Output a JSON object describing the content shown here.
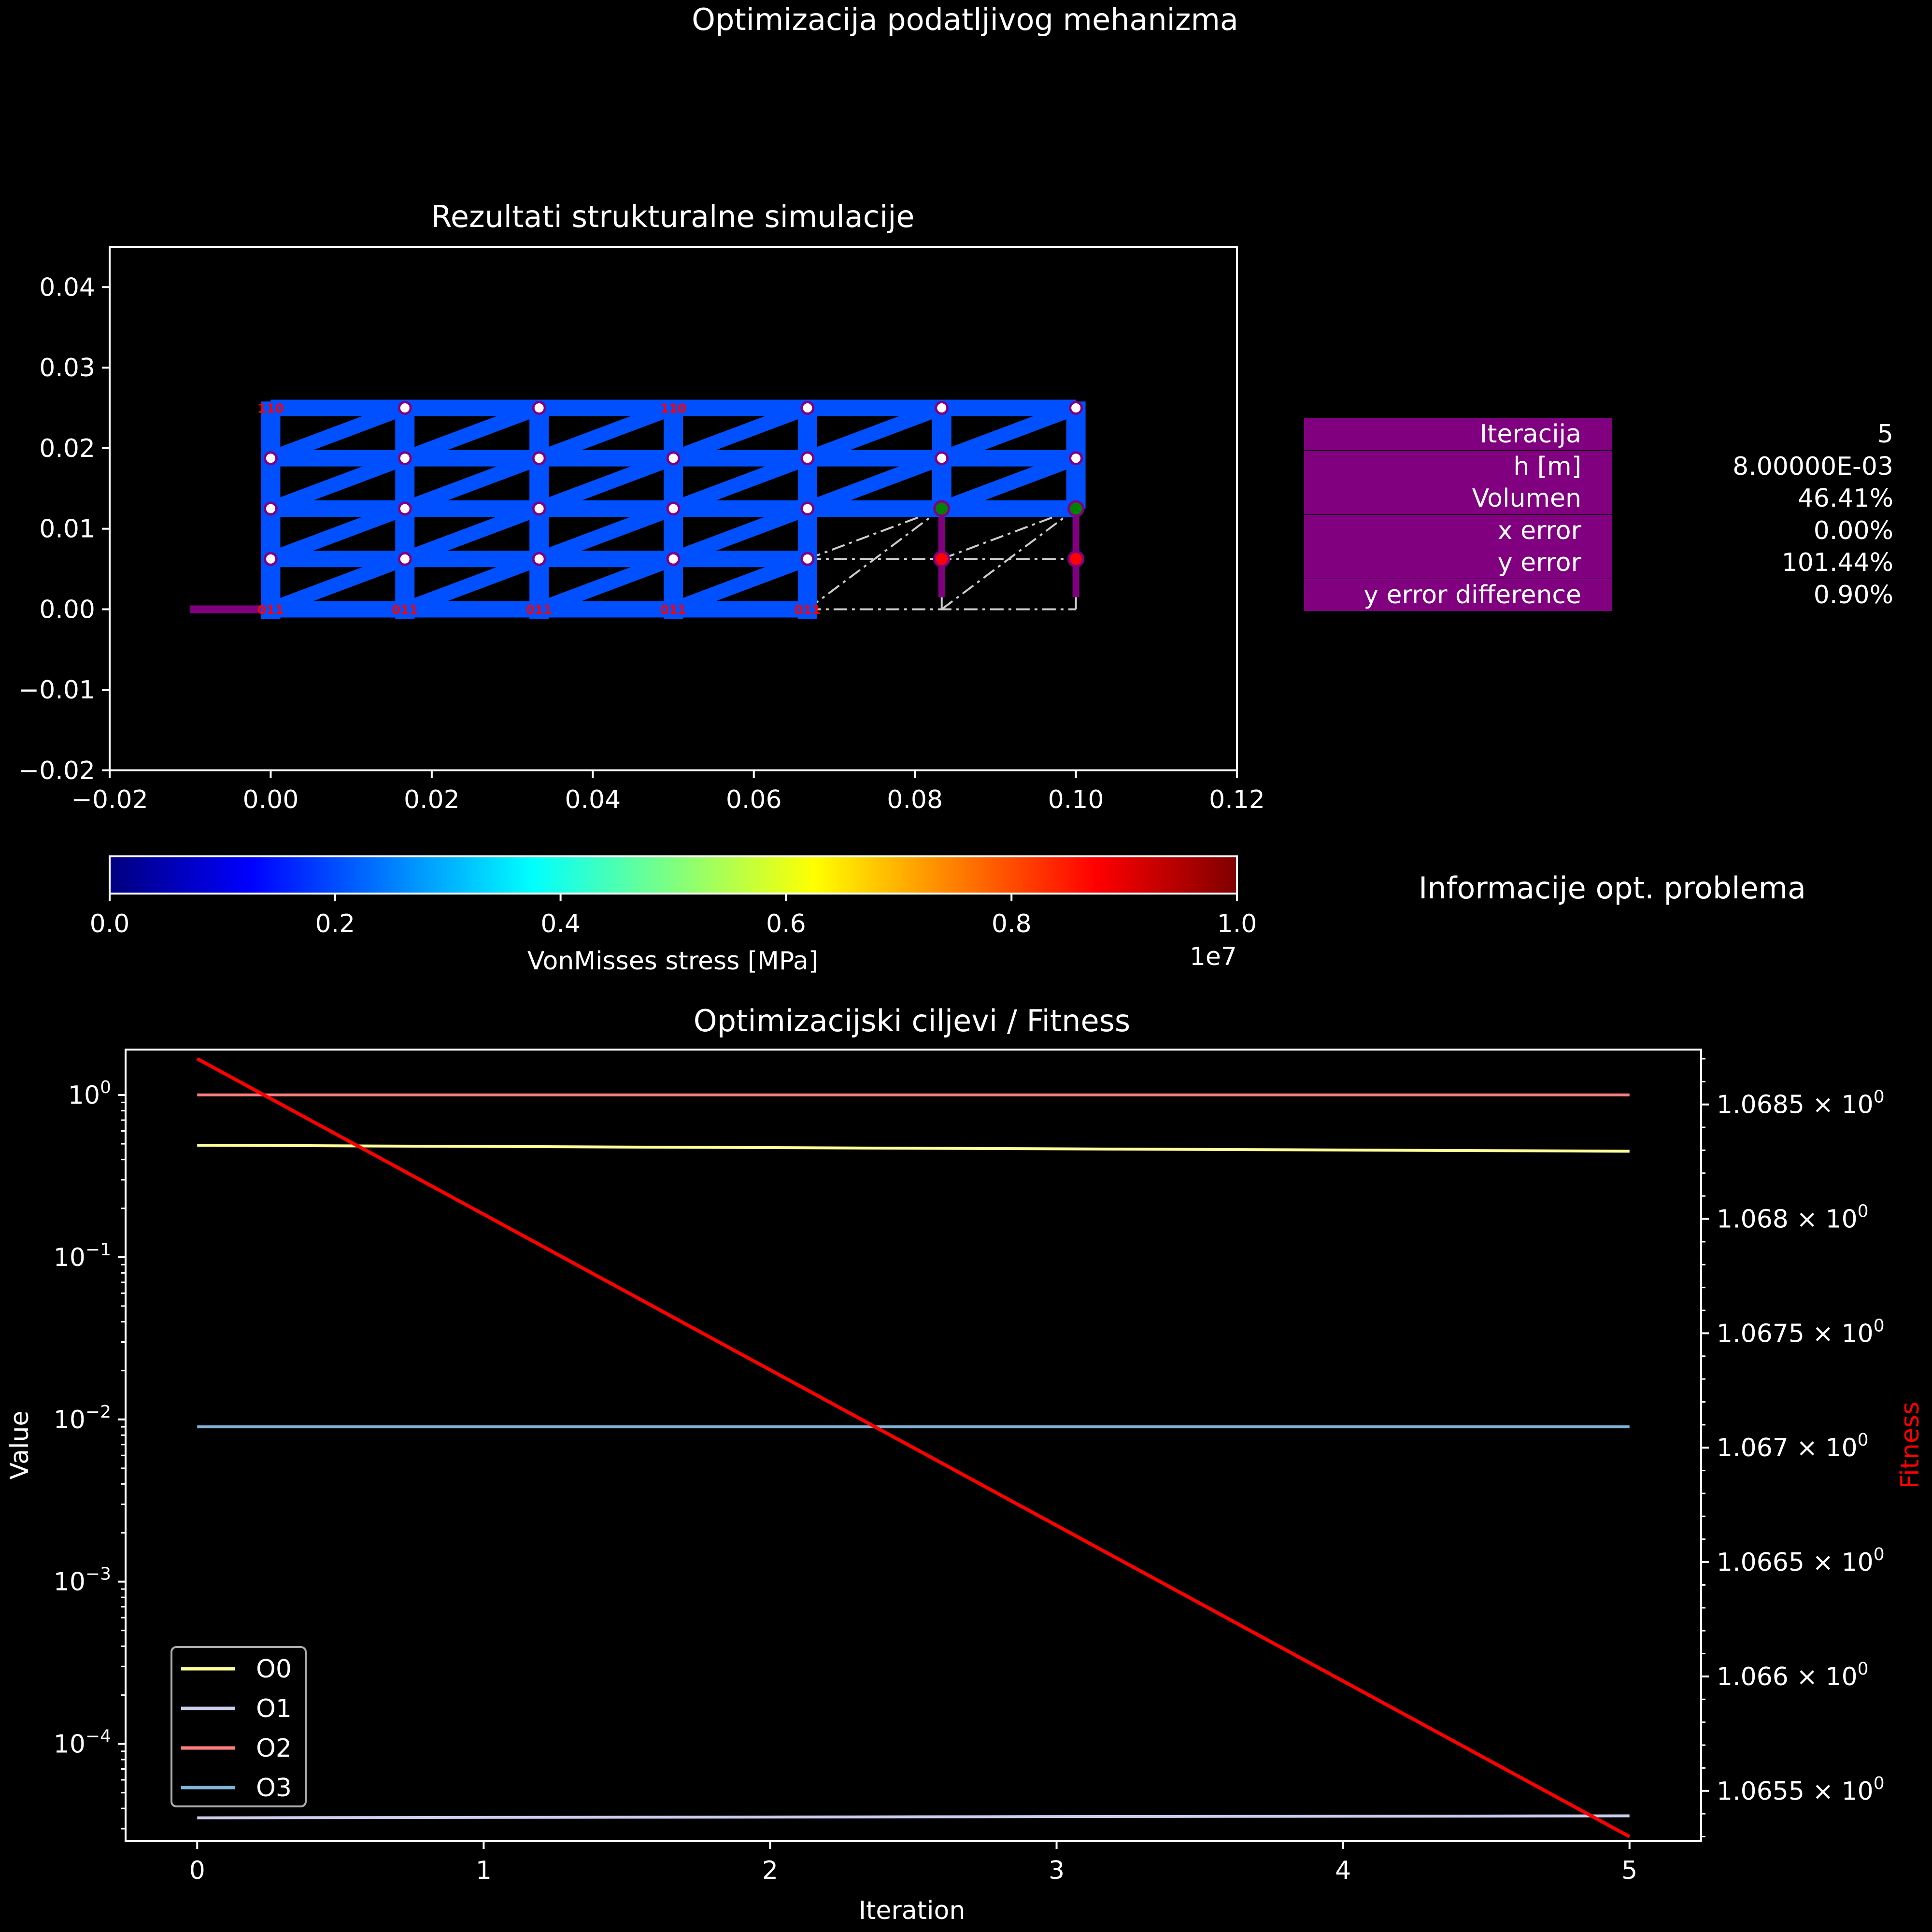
{
  "figure": {
    "title": "Optimizacija podatljivog mehanizma"
  },
  "structure_panel": {
    "title": "Rezultati strukturalne simulacije",
    "x_ticks": [
      "−0.02",
      "0.00",
      "0.02",
      "0.04",
      "0.06",
      "0.08",
      "0.10",
      "0.12"
    ],
    "y_ticks": [
      "0.04",
      "0.03",
      "0.02",
      "0.01",
      "0.00",
      "−0.01",
      "−0.02"
    ],
    "colors": {
      "beam": "#0050ff",
      "support": "#800080",
      "node_fill": "#ffffff",
      "node_edge": "#800080",
      "target_fill": "#008000",
      "output_fill": "#ff0000",
      "guide": "#cccccc",
      "node_label": "#ff0000"
    },
    "node_labels": [
      "110",
      "011",
      "011",
      "011",
      "011",
      "011",
      "110"
    ]
  },
  "colorbar": {
    "label": "VonMisses stress [MPa]",
    "ticks": [
      "0.0",
      "0.2",
      "0.4",
      "0.6",
      "0.8",
      "1.0"
    ],
    "multiplier": "1e7",
    "colormap": [
      "#00007f",
      "#0000ff",
      "#007fff",
      "#00ffff",
      "#7fff7f",
      "#ffff00",
      "#ff7f00",
      "#ff0000",
      "#7f0000"
    ]
  },
  "info_panel": {
    "title": "Informacije opt. problema",
    "rows": [
      {
        "label": "Iteracija",
        "value": "5"
      },
      {
        "label": "h [m]",
        "value": "8.00000E-03"
      },
      {
        "label": "Volumen",
        "value": "46.41%"
      },
      {
        "label": "x error",
        "value": "0.00%"
      },
      {
        "label": "y error",
        "value": "101.44%"
      },
      {
        "label": "y error difference",
        "value": "0.90%"
      }
    ],
    "label_bg": "#800080"
  },
  "chart_data": {
    "type": "line",
    "title": "Optimizacijski ciljevi / Fitness",
    "xlabel": "Iteration",
    "ylabel": "Value",
    "y2label": "Fitness",
    "x_ticks": [
      "0",
      "1",
      "2",
      "3",
      "4",
      "5"
    ],
    "xlim": [
      -0.25,
      5.25
    ],
    "yscale": "log",
    "ylim_log10": [
      -4.6,
      0.28
    ],
    "y_ticks": [
      {
        "base": "10",
        "exp": "0"
      },
      {
        "base": "10",
        "exp": "−1"
      },
      {
        "base": "10",
        "exp": "−2"
      },
      {
        "base": "10",
        "exp": "−3"
      },
      {
        "base": "10",
        "exp": "−4"
      }
    ],
    "y2lim": [
      1.06528,
      1.06874
    ],
    "y2_ticks": [
      {
        "mant": "1.0685",
        "exp": "0"
      },
      {
        "mant": "1.068",
        "exp": "0"
      },
      {
        "mant": "1.0675",
        "exp": "0"
      },
      {
        "mant": "1.067",
        "exp": "0"
      },
      {
        "mant": "1.0665",
        "exp": "0"
      },
      {
        "mant": "1.066",
        "exp": "0"
      },
      {
        "mant": "1.0655",
        "exp": "0"
      }
    ],
    "series": [
      {
        "name": "O0",
        "color": "#ffff99",
        "axis": "left",
        "x": [
          0,
          5
        ],
        "y": [
          0.49,
          0.45
        ]
      },
      {
        "name": "O1",
        "color": "#ccccee",
        "axis": "left",
        "x": [
          0,
          5
        ],
        "y": [
          3.5e-05,
          3.6e-05
        ]
      },
      {
        "name": "O2",
        "color": "#ff7f7f",
        "axis": "left",
        "x": [
          0,
          5
        ],
        "y": [
          1.0,
          1.0
        ]
      },
      {
        "name": "O3",
        "color": "#80b4d8",
        "axis": "left",
        "x": [
          0,
          5
        ],
        "y": [
          0.009,
          0.009
        ]
      },
      {
        "name": "",
        "color": "#ff0000",
        "axis": "right",
        "x": [
          0,
          5
        ],
        "y": [
          1.0687,
          1.0653
        ]
      }
    ],
    "legend": "lower-left"
  }
}
